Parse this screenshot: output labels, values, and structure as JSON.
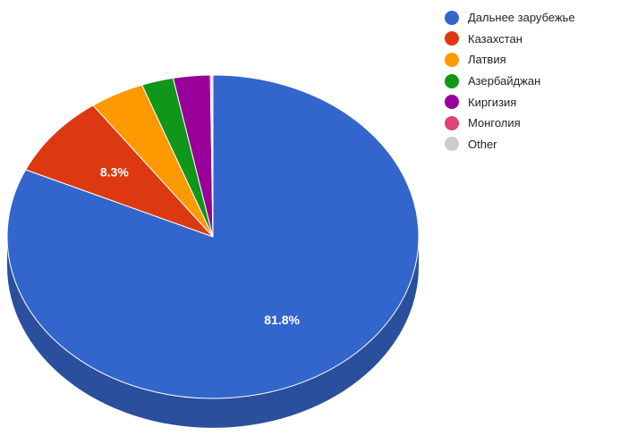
{
  "chart_data": {
    "type": "pie",
    "is_3d": true,
    "title": "",
    "slices": [
      {
        "label": "Дальнее зарубежье",
        "value": 81.8,
        "color": "#3366cc",
        "side_color": "#2a4f9c",
        "value_label": "81.8%"
      },
      {
        "label": "Казахстан",
        "value": 8.3,
        "color": "#dc3912",
        "side_color": "#a52b0d",
        "value_label": "8.3%"
      },
      {
        "label": "Латвия",
        "value": 4.3,
        "color": "#ff9900",
        "side_color": "#bf7300",
        "value_label": ""
      },
      {
        "label": "Азербайджан",
        "value": 2.5,
        "color": "#109618",
        "side_color": "#0c7012",
        "value_label": ""
      },
      {
        "label": "Киргизия",
        "value": 2.9,
        "color": "#990099",
        "side_color": "#730073",
        "value_label": ""
      },
      {
        "label": "Монголия",
        "value": 0.1,
        "color": "#dd4477",
        "side_color": "#a63359",
        "value_label": ""
      },
      {
        "label": "Other",
        "value": 0.1,
        "color": "#cccccc",
        "side_color": "#999999",
        "value_label": ""
      }
    ],
    "legend_position": "right"
  }
}
